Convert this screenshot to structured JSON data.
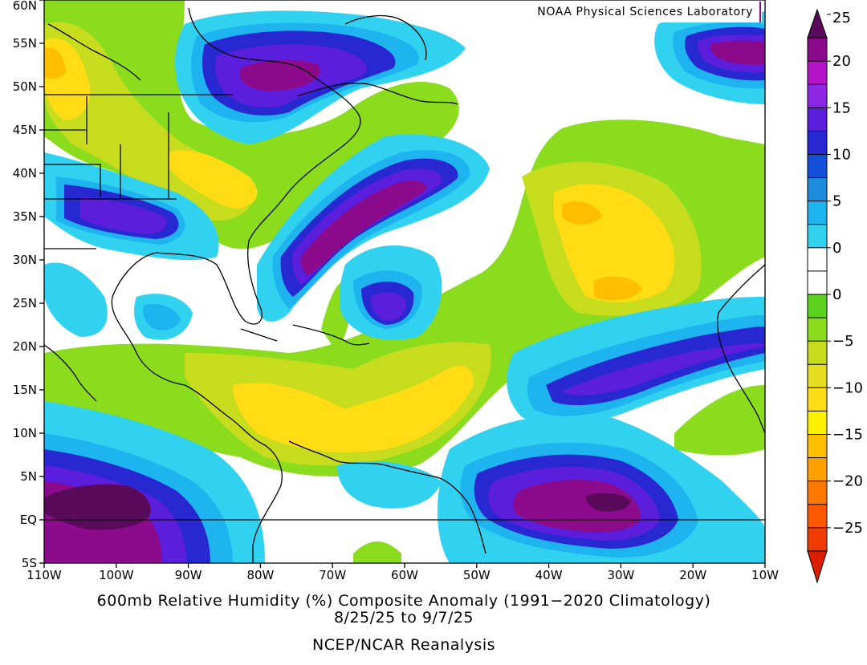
{
  "credit": "NOAA Physical Sciences Laboratory",
  "title_line1": "600mb Relative Humidity (%) Composite Anomaly (1991−2020 Climatology)",
  "title_line2": "8/25/25   to 9/7/25",
  "title_line3": "NCEP/NCAR Reanalysis",
  "map": {
    "lon_range": [
      -110,
      -10
    ],
    "lat_range": [
      -5,
      60
    ],
    "lon_ticks": [
      {
        "value": -110,
        "label": "110W"
      },
      {
        "value": -100,
        "label": "100W"
      },
      {
        "value": -90,
        "label": "90W"
      },
      {
        "value": -80,
        "label": "80W"
      },
      {
        "value": -70,
        "label": "70W"
      },
      {
        "value": -60,
        "label": "60W"
      },
      {
        "value": -50,
        "label": "50W"
      },
      {
        "value": -40,
        "label": "40W"
      },
      {
        "value": -30,
        "label": "30W"
      },
      {
        "value": -20,
        "label": "20W"
      },
      {
        "value": -10,
        "label": "10W"
      }
    ],
    "lat_ticks": [
      {
        "value": 60,
        "label": "60N"
      },
      {
        "value": 55,
        "label": "55N"
      },
      {
        "value": 50,
        "label": "50N"
      },
      {
        "value": 45,
        "label": "45N"
      },
      {
        "value": 40,
        "label": "40N"
      },
      {
        "value": 35,
        "label": "35N"
      },
      {
        "value": 30,
        "label": "30N"
      },
      {
        "value": 25,
        "label": "25N"
      },
      {
        "value": 20,
        "label": "20N"
      },
      {
        "value": 15,
        "label": "15N"
      },
      {
        "value": 10,
        "label": "10N"
      },
      {
        "value": 5,
        "label": "5N"
      },
      {
        "value": 0,
        "label": "EQ"
      },
      {
        "value": -5,
        "label": "5S"
      }
    ]
  },
  "colorbar": {
    "labels": [
      "25",
      "20",
      "15",
      "10",
      "5",
      "0",
      "0",
      "−5",
      "−10",
      "−15",
      "−20",
      "−25"
    ],
    "colors": [
      "#5a0a5a",
      "#8c0a8c",
      "#b414c8",
      "#8c28e6",
      "#5a1edc",
      "#2828d2",
      "#1450dc",
      "#1e8cdc",
      "#1eb4f0",
      "#30d2f0",
      "#ffffff",
      "#ffffff",
      "#5ad21e",
      "#8cdc1e",
      "#c8dc1e",
      "#e6dc1e",
      "#ffdc14",
      "#fff000",
      "#ffbe00",
      "#ffa000",
      "#ff7800",
      "#ff5a00",
      "#f03c00",
      "#dc1e00"
    ]
  }
}
